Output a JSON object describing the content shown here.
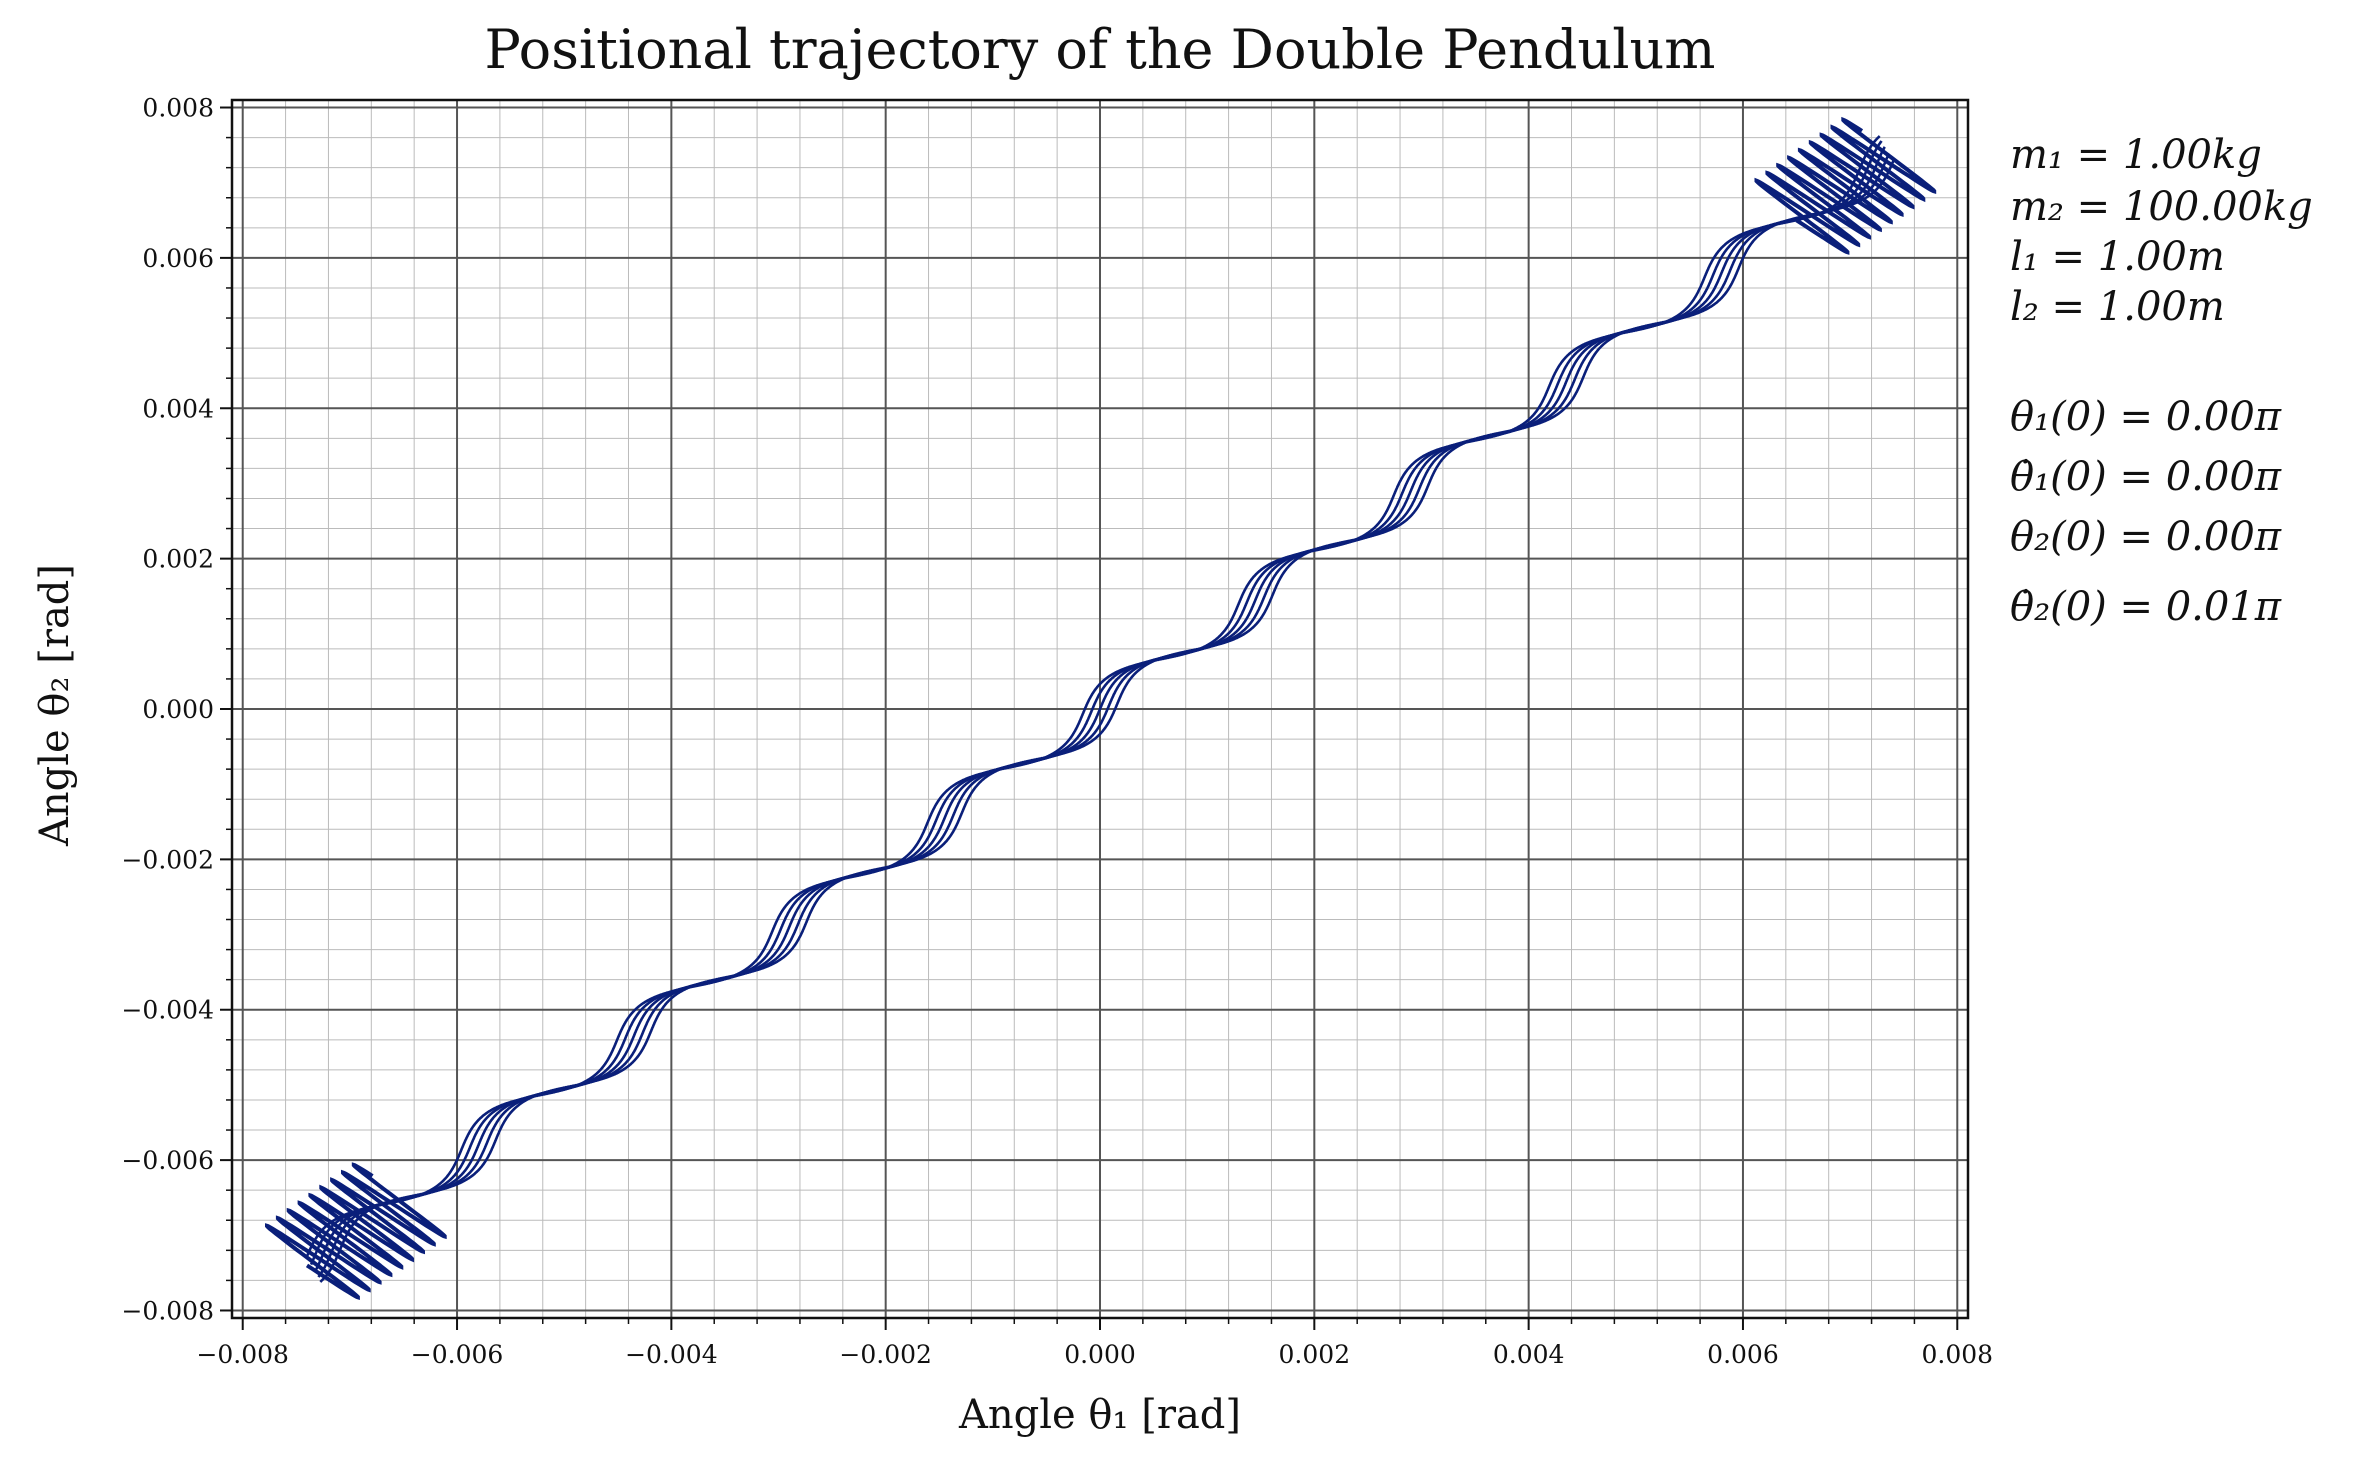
{
  "chart_data": {
    "type": "line",
    "title": "Positional trajectory of the Double Pendulum",
    "xlabel": "Angle θ₁ [rad]",
    "ylabel": "Angle θ₂ [rad]",
    "xlim": [
      -0.0081,
      0.0081
    ],
    "ylim": [
      -0.0081,
      0.0081
    ],
    "xticks": [
      -0.008,
      -0.006,
      -0.004,
      -0.002,
      0.0,
      0.002,
      0.004,
      0.006,
      0.008
    ],
    "xtick_labels": [
      "−0.008",
      "−0.006",
      "−0.004",
      "−0.002",
      "0.000",
      "0.002",
      "0.004",
      "0.006",
      "0.008"
    ],
    "yticks": [
      -0.008,
      -0.006,
      -0.004,
      -0.002,
      0.0,
      0.002,
      0.004,
      0.006,
      0.008
    ],
    "ytick_labels": [
      "−0.008",
      "−0.006",
      "−0.004",
      "−0.002",
      "0.000",
      "0.002",
      "0.004",
      "0.006",
      "0.008"
    ],
    "grid": true,
    "minor_grid": true,
    "legend": "none",
    "line_color": "#0a1f7a",
    "series": [
      {
        "description": "trajectory θ2 vs θ1, staircase spiral along diagonal",
        "amplitude": 0.0074,
        "staircase_period_theta1": 0.00145,
        "offsets": [
          -0.00016,
          -8e-05,
          0.0,
          8e-05,
          0.00016
        ]
      }
    ],
    "annotations": [
      "m₁ = 1.00kg",
      "m₂ = 100.00kg",
      "l₁ = 1.00m",
      "l₂ = 1.00m",
      "θ₁(0) = 0.00π",
      "θ̇₁(0) = 0.00π",
      "θ₂(0) = 0.00π",
      "θ̇₂(0) = 0.01π"
    ]
  }
}
